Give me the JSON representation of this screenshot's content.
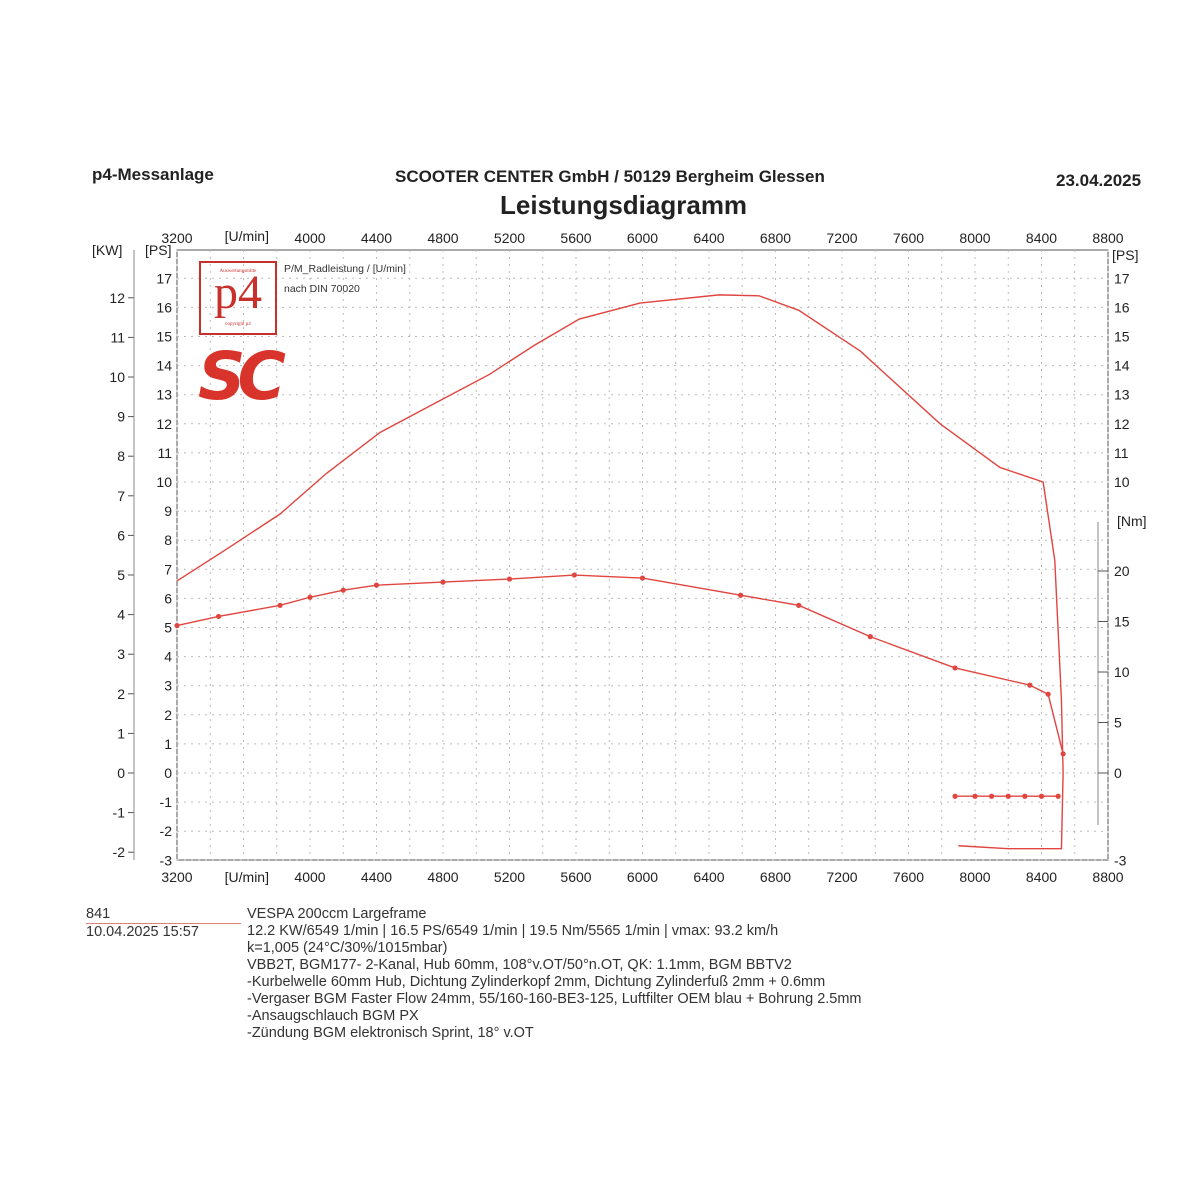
{
  "header": {
    "left": "p4-Messanlage",
    "center": "SCOOTER CENTER GmbH / 50129 Bergheim Glessen",
    "date": "23.04.2025",
    "title": "Leistungsdiagramm"
  },
  "logos": {
    "p4_text": "p4",
    "p4_top": "Auswertungsmitte",
    "p4_bottom": "copyright p4",
    "sc_text": "SC"
  },
  "legend": {
    "line1": "P/M_Radleistung / [U/min]",
    "line2": "nach DIN 70020"
  },
  "info": {
    "run_no": "841",
    "run_date": "10.04.2025  15:57",
    "lines": [
      "VESPA 200ccm Largeframe",
      "12.2 KW/6549 1/min  |  16.5 PS/6549 1/min  |  19.5 Nm/5565 1/min | vmax: 93.2 km/h",
      "k=1,005 (24°C/30%/1015mbar)",
      "VBB2T, BGM177- 2-Kanal, Hub 60mm, 108°v.OT/50°n.OT, QK: 1.1mm, BGM BBTV2",
      "-Kurbelwelle 60mm Hub, Dichtung Zylinderkopf 2mm, Dichtung Zylinderfuß 2mm + 0.6mm",
      "-Vergaser BGM Faster Flow 24mm, 55/160-160-BE3-125, Luftfilter OEM blau + Bohrung 2.5mm",
      "-Ansaugschlauch BGM PX",
      "-Zündung BGM elektronisch Sprint, 18° v.OT"
    ]
  },
  "chart_data": {
    "type": "line",
    "title": "Leistungsdiagramm",
    "x_unit_label": "[U/min]",
    "xlim": [
      3200,
      8800
    ],
    "x_ticks": [
      3200,
      4000,
      4400,
      4800,
      5200,
      5600,
      6000,
      6400,
      6800,
      7200,
      7600,
      8000,
      8400,
      8800
    ],
    "axes": {
      "kw": {
        "label": "[KW]",
        "range": [
          -2,
          12
        ],
        "ticks": [
          -2,
          -1,
          0,
          1,
          2,
          3,
          4,
          5,
          6,
          7,
          8,
          9,
          10,
          11,
          12
        ]
      },
      "ps_left": {
        "label": "[PS]",
        "range": [
          -3,
          17
        ],
        "ticks": [
          -3,
          -2,
          -1,
          0,
          1,
          2,
          3,
          4,
          5,
          6,
          7,
          8,
          9,
          10,
          11,
          12,
          13,
          14,
          15,
          16,
          17
        ]
      },
      "ps_right": {
        "label": "[PS]",
        "ticks": [
          10,
          11,
          12,
          13,
          14,
          15,
          16,
          17
        ],
        "bottom_tick": -3
      },
      "nm": {
        "label": "[Nm]",
        "ticks": [
          0,
          5,
          10,
          15,
          20
        ]
      }
    },
    "grid": true,
    "series": [
      {
        "name": "Leistung [PS]",
        "color": "#e0453f",
        "axis": "ps",
        "x": [
          3200,
          3500,
          3820,
          4100,
          4420,
          4750,
          5080,
          5350,
          5620,
          5985,
          6460,
          6700,
          6940,
          7310,
          7790,
          8150,
          8410,
          8480,
          8520,
          8530,
          8520,
          8200,
          7900
        ],
        "y": [
          6.6,
          7.7,
          8.9,
          10.3,
          11.7,
          12.7,
          13.7,
          14.7,
          15.6,
          16.15,
          16.43,
          16.4,
          15.9,
          14.5,
          12.0,
          10.5,
          10.0,
          7.3,
          2.5,
          0,
          -2.6,
          -2.6,
          -2.5
        ]
      },
      {
        "name": "Drehmoment [Nm]",
        "color": "#e0453f",
        "axis": "nm",
        "markers": true,
        "x": [
          3200,
          3450,
          3820,
          4000,
          4200,
          4400,
          4800,
          5200,
          5590,
          6000,
          6590,
          6940,
          7370,
          7880,
          8330,
          8440,
          8530
        ],
        "y": [
          14.6,
          15.5,
          16.6,
          17.4,
          18.1,
          18.6,
          18.9,
          19.2,
          19.6,
          19.3,
          17.6,
          16.6,
          13.5,
          10.4,
          8.7,
          7.8,
          1.9
        ]
      },
      {
        "name": "Drehmoment Ausrollen [Nm]",
        "color": "#e0453f",
        "axis": "nm",
        "markers": true,
        "x": [
          7880,
          8000,
          8100,
          8200,
          8300,
          8400,
          8500
        ],
        "y": [
          -2.3,
          -2.3,
          -2.3,
          -2.3,
          -2.3,
          -2.3,
          -2.3
        ]
      }
    ]
  }
}
